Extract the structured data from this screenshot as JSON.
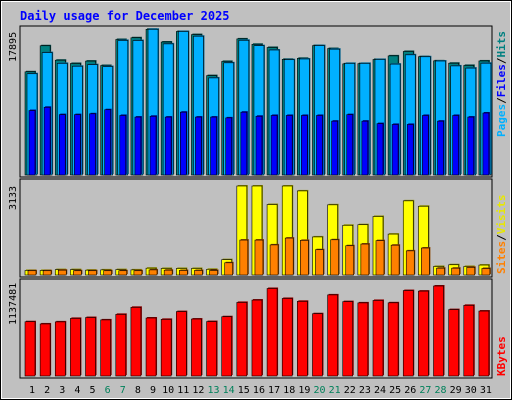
{
  "chart_data": [
    {
      "type": "bar",
      "title": "Daily usage for December 2025",
      "categories": [
        "1",
        "2",
        "3",
        "4",
        "5",
        "6",
        "7",
        "8",
        "9",
        "10",
        "11",
        "12",
        "13",
        "14",
        "15",
        "16",
        "17",
        "18",
        "19",
        "20",
        "21",
        "22",
        "23",
        "24",
        "25",
        "26",
        "27",
        "28",
        "29",
        "30",
        "31"
      ],
      "weekend_days": [
        "6",
        "7",
        "13",
        "14",
        "20",
        "21",
        "27",
        "28"
      ],
      "ylim": [
        0,
        17895
      ],
      "ymax_label": "17895",
      "ylabel_parts": [
        "Pages",
        "/",
        "Files",
        "/",
        "Hits"
      ],
      "series": [
        {
          "name": "Hits",
          "color": "#008080",
          "values": [
            12650,
            15840,
            14070,
            13670,
            13960,
            13420,
            16610,
            16820,
            17860,
            16300,
            17590,
            17210,
            12180,
            13920,
            16680,
            16020,
            15630,
            14180,
            14300,
            15860,
            15500,
            13620,
            13650,
            14160,
            14600,
            15140,
            14500,
            13990,
            13700,
            13430,
            13980
          ]
        },
        {
          "name": "Files",
          "color": "#00b0ff",
          "values": [
            12410,
            15000,
            13680,
            13330,
            13520,
            13290,
            16490,
            16480,
            17860,
            16070,
            17590,
            17010,
            11900,
            13750,
            16510,
            15850,
            15320,
            14130,
            14220,
            15860,
            15420,
            13680,
            13680,
            14160,
            13590,
            14730,
            14490,
            13970,
            13370,
            13100,
            13700
          ]
        },
        {
          "name": "Pages",
          "color": "#0000ff",
          "values": [
            7900,
            8300,
            7400,
            7400,
            7500,
            8000,
            7300,
            7100,
            7200,
            7100,
            7700,
            7100,
            7100,
            7000,
            7700,
            7200,
            7300,
            7300,
            7300,
            7300,
            6600,
            7400,
            6600,
            6300,
            6200,
            6200,
            7300,
            6600,
            7300,
            7100,
            7600
          ]
        }
      ]
    },
    {
      "type": "bar",
      "ylim": [
        0,
        3133
      ],
      "ymax_label": "3133",
      "ylabel_parts": [
        "Sites",
        "/",
        "Visits"
      ],
      "series": [
        {
          "name": "Visits",
          "color": "#ffff00",
          "values": [
            160,
            160,
            190,
            190,
            170,
            180,
            190,
            180,
            240,
            230,
            230,
            230,
            200,
            540,
            3133,
            3133,
            2480,
            3133,
            2960,
            1340,
            2470,
            1750,
            1770,
            2060,
            1440,
            2610,
            2420,
            300,
            360,
            300,
            350
          ]
        },
        {
          "name": "Sites",
          "color": "#ff8000",
          "values": [
            150,
            150,
            170,
            150,
            150,
            150,
            150,
            150,
            180,
            170,
            160,
            160,
            160,
            430,
            1230,
            1230,
            1060,
            1300,
            1220,
            890,
            1240,
            1030,
            1090,
            1210,
            1050,
            850,
            950,
            240,
            240,
            270,
            230
          ]
        }
      ]
    },
    {
      "type": "bar",
      "ylim": [
        0,
        1137481
      ],
      "ymax_label": "1137481",
      "ylabel_parts": [
        "KBytes"
      ],
      "series": [
        {
          "name": "KBytes",
          "color": "#ff0000",
          "values": [
            686000,
            658000,
            684000,
            728000,
            739000,
            709000,
            779000,
            868000,
            733000,
            716000,
            814000,
            720000,
            688000,
            749000,
            930000,
            960000,
            1106000,
            980000,
            944000,
            787000,
            1025000,
            940000,
            924000,
            955000,
            925000,
            1080000,
            1073000,
            1137481,
            839000,
            893000,
            821000
          ]
        }
      ]
    }
  ]
}
